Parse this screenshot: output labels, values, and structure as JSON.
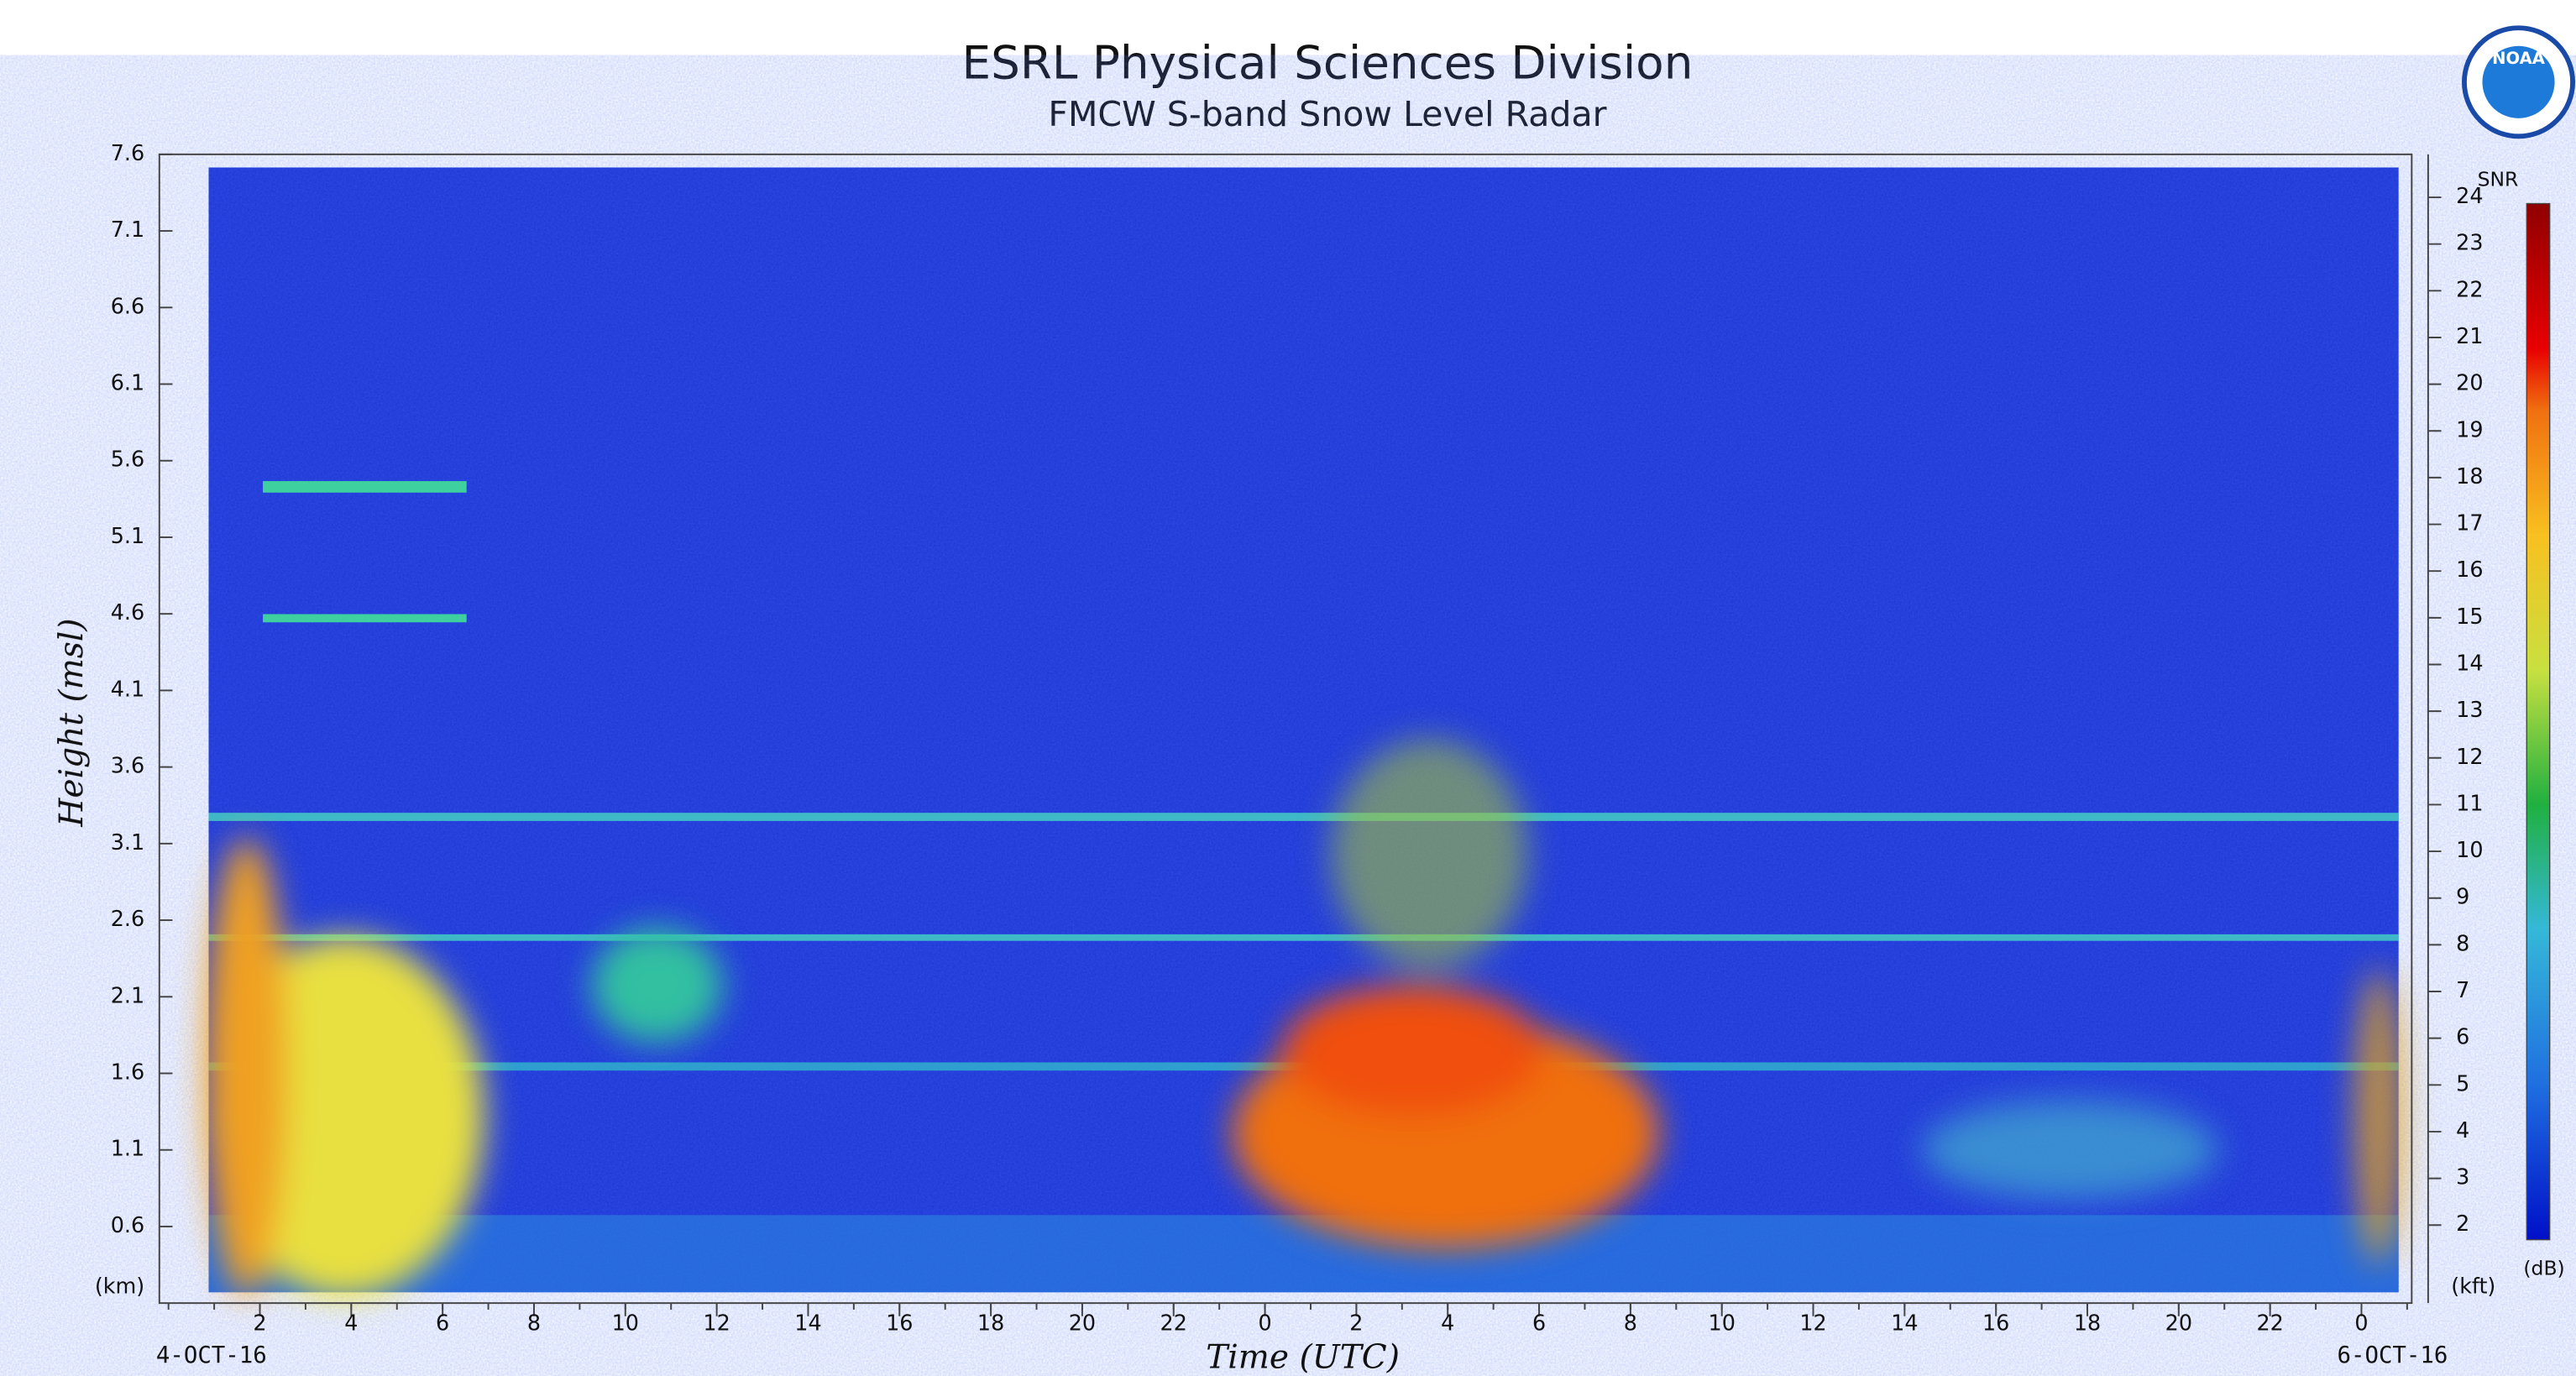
{
  "chart_data": {
    "type": "heatmap",
    "title": "ESRL Physical Sciences Division",
    "subtitle": "FMCW S-band Snow Level Radar",
    "ylabel": "Height (msl)",
    "xlabel": "Time (UTC)",
    "y_unit": "(km)",
    "y2_unit": "(kft)",
    "start_date": "4-OCT-16",
    "end_date": "6-OCT-16",
    "colorbar_label": "SNR",
    "colorbar_unit": "(dB)",
    "logo_text": "NOAA",
    "xlim": [
      -0.2,
      49.1
    ],
    "xticks": [
      2,
      4,
      6,
      8,
      10,
      12,
      14,
      16,
      18,
      20,
      22,
      {
        "value": 24,
        "label": "0"
      },
      {
        "value": 26,
        "label": "2"
      },
      {
        "value": 28,
        "label": "4"
      },
      {
        "value": 30,
        "label": "6"
      },
      {
        "value": 32,
        "label": "8"
      },
      {
        "value": 34,
        "label": "10"
      },
      {
        "value": 36,
        "label": "12"
      },
      {
        "value": 38,
        "label": "14"
      },
      {
        "value": 40,
        "label": "16"
      },
      {
        "value": 42,
        "label": "18"
      },
      {
        "value": 44,
        "label": "20"
      },
      {
        "value": 46,
        "label": "22"
      },
      {
        "value": 48,
        "label": "0"
      }
    ],
    "ylim": [
      0.1,
      7.6
    ],
    "yticks": [
      0.6,
      1.1,
      1.6,
      2.1,
      2.6,
      3.1,
      3.6,
      4.1,
      4.6,
      5.1,
      5.6,
      6.1,
      6.6,
      7.1,
      7.6
    ],
    "y2lim": [
      0.33,
      24.92
    ],
    "y2ticks": [
      2,
      3,
      4,
      5,
      6,
      7,
      8,
      9,
      10,
      11,
      12,
      13,
      14,
      15,
      16,
      17,
      18,
      19,
      20,
      21,
      22,
      23,
      24
    ]
  }
}
